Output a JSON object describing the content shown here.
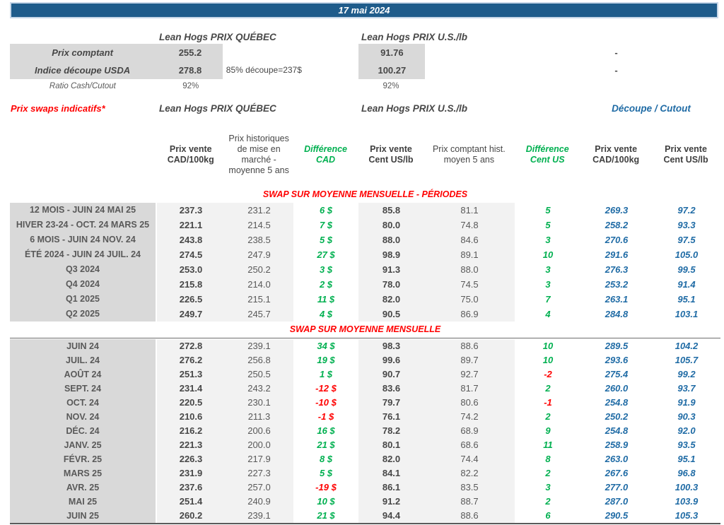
{
  "title_bar": {
    "date": "17 mai 2024"
  },
  "colors": {
    "header_bar": "#1F5C8B",
    "positive_green": "#00B050",
    "negative_red": "#FF0000",
    "cutout_blue": "#1F6BA5",
    "label_bg": "#D9D9D9",
    "value_bg": "#F2F2F2"
  },
  "spot": {
    "quebec_title": "Lean Hogs PRIX QUÉBEC",
    "us_title": "Lean Hogs PRIX U.S./lb",
    "rows": [
      {
        "label": "Prix comptant",
        "cad": "255.2",
        "note": "",
        "us": "91.76",
        "cutout_dash": "-"
      },
      {
        "label": "Indice découpe USDA",
        "cad": "278.8",
        "note": "85% découpe=237$",
        "us": "100.27",
        "cutout_dash": "-"
      },
      {
        "label": "Ratio Cash/Cutout",
        "cad": "92%",
        "note": "",
        "us": "92%",
        "cutout_dash": ""
      }
    ]
  },
  "swaps": {
    "label": "Prix swaps indicatifs*",
    "quebec_title": "Lean Hogs PRIX QUÉBEC",
    "us_title": "Lean Hogs PRIX U.S./lb",
    "cutout_title": "Découpe / Cutout",
    "column_headers": [
      {
        "col": "B",
        "style": "bold",
        "text": "Prix vente\nCAD/100kg"
      },
      {
        "col": "C",
        "style": "normal",
        "text": "Prix historiques\nde mise en\nmarché -\nmoyenne 5 ans"
      },
      {
        "col": "D",
        "style": "green",
        "text": "Différence\nCAD"
      },
      {
        "col": "E",
        "style": "bold",
        "text": "Prix vente\nCent US/lb"
      },
      {
        "col": "F",
        "style": "normal",
        "text": "Prix comptant hist.\nmoyen 5 ans"
      },
      {
        "col": "G",
        "style": "green",
        "text": "Différence\nCent US"
      },
      {
        "col": "H",
        "style": "bold",
        "text": "Prix vente\nCAD/100kg"
      },
      {
        "col": "I",
        "style": "bold",
        "text": "Prix vente\nCent US/lb"
      }
    ],
    "sections": [
      {
        "title": "SWAP SUR MOYENNE MENSUELLE - PÉRIODES",
        "rows": [
          [
            "12 MOIS - JUIN 24 MAI 25",
            "237.3",
            "231.2",
            "6 $",
            "85.8",
            "81.1",
            "5",
            "269.3",
            "97.2"
          ],
          [
            "HIVER 23-24 - OCT. 24 MARS 25",
            "221.1",
            "214.5",
            "7 $",
            "80.0",
            "74.8",
            "5",
            "258.2",
            "93.3"
          ],
          [
            "6 MOIS - JUIN 24 NOV. 24",
            "243.8",
            "238.5",
            "5 $",
            "88.0",
            "84.6",
            "3",
            "270.6",
            "97.5"
          ],
          [
            "ÉTÉ 2024 - JUIN 24 JUIL. 24",
            "274.5",
            "247.9",
            "27 $",
            "98.9",
            "89.1",
            "10",
            "291.6",
            "105.0"
          ],
          [
            "Q3 2024",
            "253.0",
            "250.2",
            "3 $",
            "91.3",
            "88.0",
            "3",
            "276.3",
            "99.5"
          ],
          [
            "Q4 2024",
            "215.8",
            "214.0",
            "2 $",
            "78.0",
            "74.5",
            "3",
            "253.2",
            "91.4"
          ],
          [
            "Q1 2025",
            "226.5",
            "215.1",
            "11 $",
            "82.0",
            "75.0",
            "7",
            "263.1",
            "95.1"
          ],
          [
            "Q2 2025",
            "249.7",
            "245.7",
            "4 $",
            "90.5",
            "86.9",
            "4",
            "284.8",
            "103.1"
          ]
        ]
      },
      {
        "title": "SWAP SUR MOYENNE MENSUELLE",
        "rows": [
          [
            "JUIN 24",
            "272.8",
            "239.1",
            "34 $",
            "98.3",
            "88.6",
            "10",
            "289.5",
            "104.2"
          ],
          [
            "JUIL. 24",
            "276.2",
            "256.8",
            "19 $",
            "99.6",
            "89.7",
            "10",
            "293.6",
            "105.7"
          ],
          [
            "AOÛT 24",
            "251.3",
            "250.5",
            "1 $",
            "90.7",
            "92.7",
            "-2",
            "275.4",
            "99.2"
          ],
          [
            "SEPT. 24",
            "231.4",
            "243.2",
            "-12 $",
            "83.6",
            "81.7",
            "2",
            "260.0",
            "93.7"
          ],
          [
            "OCT. 24",
            "220.5",
            "230.1",
            "-10 $",
            "79.7",
            "80.6",
            "-1",
            "254.8",
            "91.9"
          ],
          [
            "NOV. 24",
            "210.6",
            "211.3",
            "-1 $",
            "76.1",
            "74.2",
            "2",
            "250.2",
            "90.3"
          ],
          [
            "DÉC. 24",
            "216.2",
            "200.6",
            "16 $",
            "78.2",
            "68.9",
            "9",
            "254.8",
            "92.0"
          ],
          [
            "JANV. 25",
            "221.3",
            "200.0",
            "21 $",
            "80.1",
            "68.6",
            "11",
            "258.9",
            "93.5"
          ],
          [
            "FÉVR. 25",
            "226.3",
            "217.9",
            "8 $",
            "82.0",
            "74.4",
            "8",
            "263.0",
            "95.1"
          ],
          [
            "MARS 25",
            "231.9",
            "227.3",
            "5 $",
            "84.1",
            "82.2",
            "2",
            "267.6",
            "96.8"
          ],
          [
            "AVR. 25",
            "237.6",
            "257.0",
            "-19 $",
            "86.1",
            "83.5",
            "3",
            "277.0",
            "100.3"
          ],
          [
            "MAI 25",
            "251.4",
            "240.9",
            "10 $",
            "91.2",
            "88.7",
            "2",
            "287.0",
            "103.9"
          ],
          [
            "JUIN 25",
            "260.2",
            "239.1",
            "21 $",
            "94.4",
            "88.6",
            "6",
            "290.5",
            "105.3"
          ]
        ]
      }
    ]
  }
}
